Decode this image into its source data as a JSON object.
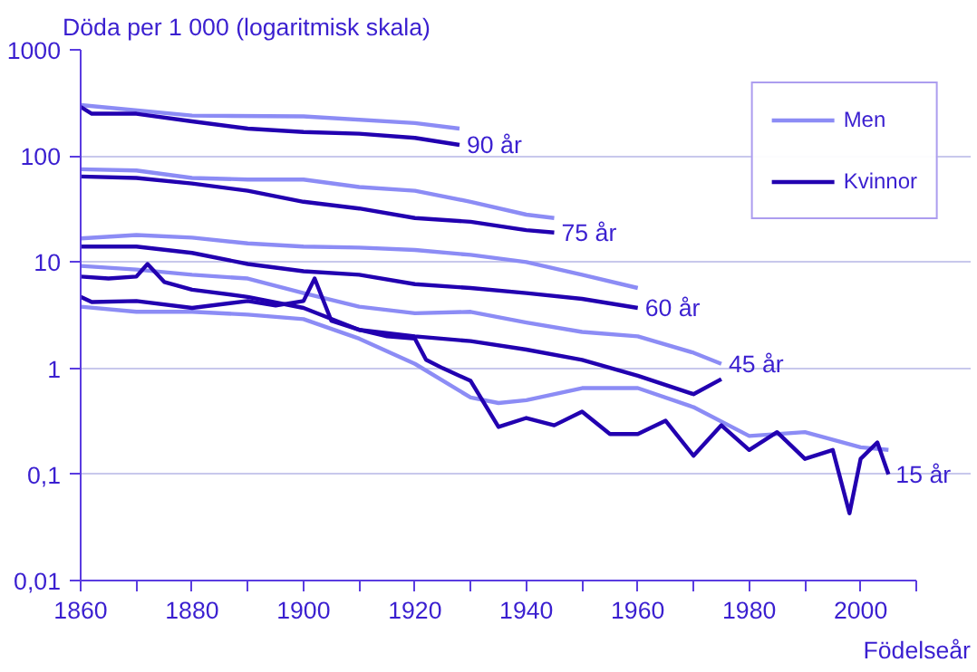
{
  "chart_data": {
    "type": "line",
    "ylabel": "Döda per 1 000 (logaritmisk  skala)",
    "xlabel": "Födelseår",
    "log": "y",
    "grid": "y",
    "legend": "top right",
    "line_style": "solid",
    "marker": "none",
    "xlim": [
      1860,
      2010
    ],
    "ylim": [
      0.01,
      1000
    ],
    "xticks": [
      1860,
      {
        "value": 1870,
        "label": null
      },
      1880,
      {
        "value": 1890,
        "label": null
      },
      1900,
      {
        "value": 1910,
        "label": null
      },
      1920,
      {
        "value": 1930,
        "label": null
      },
      1940,
      {
        "value": 1950,
        "label": null
      },
      1960,
      {
        "value": 1970,
        "label": null
      },
      1980,
      {
        "value": 1990,
        "label": null
      },
      2000,
      {
        "value": 2010,
        "label": null
      }
    ],
    "yticks": [
      {
        "value": 0.01,
        "label": "0,01"
      },
      {
        "value": 0.1,
        "label": "0,1"
      },
      1,
      10,
      100,
      1000
    ],
    "series": [
      {
        "name": "Men",
        "color": "#8c8cf5",
        "x": [
          1860,
          1880,
          1900,
          1920,
          1928
        ],
        "values": [
          302,
          240,
          236,
          204,
          181
        ]
      },
      {
        "name": "Kvinnor",
        "color": "#2200b0",
        "x": [
          1860,
          1862,
          1870,
          1880,
          1890,
          1900,
          1910,
          1920,
          1928
        ],
        "values": [
          290,
          250,
          250,
          212,
          181,
          168,
          162,
          148,
          127
        ]
      },
      {
        "color": "#8c8cf5",
        "x": [
          1860,
          1870,
          1880,
          1890,
          1900,
          1910,
          1920,
          1930,
          1940,
          1945
        ],
        "values": [
          75,
          73,
          62,
          60,
          60,
          51,
          47,
          37,
          28,
          26
        ]
      },
      {
        "color": "#2200b0",
        "x": [
          1860,
          1870,
          1880,
          1890,
          1900,
          1910,
          1920,
          1930,
          1940,
          1945
        ],
        "values": [
          64,
          62,
          55,
          47,
          37,
          32,
          26,
          24,
          20,
          19
        ]
      },
      {
        "color": "#8c8cf5",
        "x": [
          1860,
          1870,
          1880,
          1890,
          1900,
          1910,
          1920,
          1930,
          1940,
          1950,
          1960
        ],
        "values": [
          16.7,
          18,
          17,
          15,
          14,
          13.7,
          13,
          11.7,
          10,
          7.6,
          5.7
        ]
      },
      {
        "color": "#2200b0",
        "x": [
          1860,
          1870,
          1880,
          1890,
          1900,
          1910,
          1920,
          1930,
          1940,
          1950,
          1960
        ],
        "values": [
          14,
          14,
          12.2,
          9.6,
          8.2,
          7.6,
          6.2,
          5.7,
          5.1,
          4.5,
          3.7
        ]
      },
      {
        "color": "#8c8cf5",
        "x": [
          1860,
          1870,
          1880,
          1890,
          1900,
          1910,
          1920,
          1930,
          1940,
          1950,
          1960,
          1970,
          1975
        ],
        "values": [
          9.2,
          8.5,
          7.6,
          7,
          5.1,
          3.8,
          3.3,
          3.4,
          2.7,
          2.2,
          2.0,
          1.4,
          1.1
        ]
      },
      {
        "color": "#2200b0",
        "x": [
          1860,
          1865,
          1870,
          1872,
          1875,
          1880,
          1890,
          1900,
          1910,
          1920,
          1930,
          1940,
          1950,
          1960,
          1970,
          1975
        ],
        "values": [
          7.3,
          7.0,
          7.3,
          9.6,
          6.5,
          5.5,
          4.7,
          3.7,
          2.3,
          2.0,
          1.8,
          1.5,
          1.2,
          0.85,
          0.57,
          0.79
        ]
      },
      {
        "color": "#8c8cf5",
        "x": [
          1860,
          1870,
          1880,
          1890,
          1900,
          1910,
          1920,
          1930,
          1935,
          1940,
          1950,
          1960,
          1970,
          1980,
          1990,
          2000,
          2005
        ],
        "values": [
          3.8,
          3.4,
          3.4,
          3.2,
          2.9,
          1.9,
          1.1,
          0.53,
          0.47,
          0.5,
          0.65,
          0.65,
          0.43,
          0.23,
          0.25,
          0.18,
          0.17
        ]
      },
      {
        "color": "#2200b0",
        "x": [
          1860,
          1862,
          1870,
          1880,
          1890,
          1895,
          1900,
          1902,
          1905,
          1910,
          1915,
          1920,
          1922,
          1925,
          1930,
          1935,
          1940,
          1945,
          1950,
          1955,
          1960,
          1965,
          1970,
          1975,
          1980,
          1985,
          1990,
          1995,
          1998,
          2000,
          2003,
          2005
        ],
        "values": [
          4.7,
          4.2,
          4.3,
          3.7,
          4.3,
          3.9,
          4.3,
          7,
          2.8,
          2.3,
          2.0,
          1.9,
          1.2,
          1.0,
          0.76,
          0.28,
          0.34,
          0.29,
          0.39,
          0.24,
          0.24,
          0.32,
          0.15,
          0.29,
          0.17,
          0.25,
          0.14,
          0.17,
          0.043,
          0.14,
          0.2,
          0.1
        ]
      }
    ],
    "annotations": [
      {
        "text": "90 år",
        "x": 1928,
        "y": 127
      },
      {
        "text": "75 år",
        "x": 1945,
        "y": 19
      },
      {
        "text": "60 år",
        "x": 1960,
        "y": 3.7
      },
      {
        "text": "45 år",
        "x": 1975,
        "y": 1.1
      },
      {
        "text": "15 år",
        "x": 2005,
        "y": 0.1
      }
    ]
  }
}
